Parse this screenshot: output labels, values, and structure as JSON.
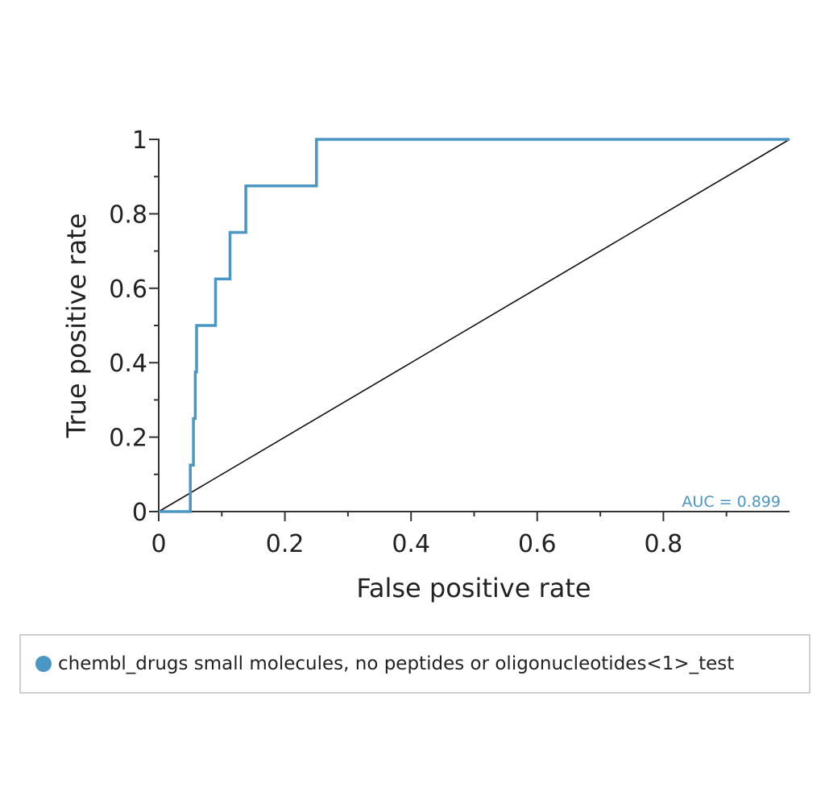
{
  "chart_data": {
    "type": "line",
    "xlabel": "False positive rate",
    "ylabel": "True positive rate",
    "xlim": [
      0,
      1
    ],
    "ylim": [
      0,
      1
    ],
    "x_ticks": [
      0,
      0.2,
      0.4,
      0.6,
      0.8
    ],
    "y_ticks": [
      0,
      0.2,
      0.4,
      0.6,
      0.8,
      1
    ],
    "grid": false,
    "legend_position": "bottom",
    "annotation": "AUC = 0.899",
    "series": [
      {
        "name": "chembl_drugs small molecules, no peptides or oligonucleotides<1>_test",
        "color": "#4a97c3",
        "points": [
          [
            0,
            0
          ],
          [
            0.05,
            0
          ],
          [
            0.05,
            0.125
          ],
          [
            0.055,
            0.125
          ],
          [
            0.055,
            0.25
          ],
          [
            0.058,
            0.25
          ],
          [
            0.058,
            0.375
          ],
          [
            0.06,
            0.375
          ],
          [
            0.06,
            0.5
          ],
          [
            0.09,
            0.5
          ],
          [
            0.09,
            0.625
          ],
          [
            0.113,
            0.625
          ],
          [
            0.113,
            0.75
          ],
          [
            0.138,
            0.75
          ],
          [
            0.138,
            0.875
          ],
          [
            0.25,
            0.875
          ],
          [
            0.25,
            1
          ],
          [
            1,
            1
          ]
        ]
      },
      {
        "color": "#111111",
        "points": [
          [
            0,
            0
          ],
          [
            1,
            1
          ]
        ]
      }
    ]
  }
}
